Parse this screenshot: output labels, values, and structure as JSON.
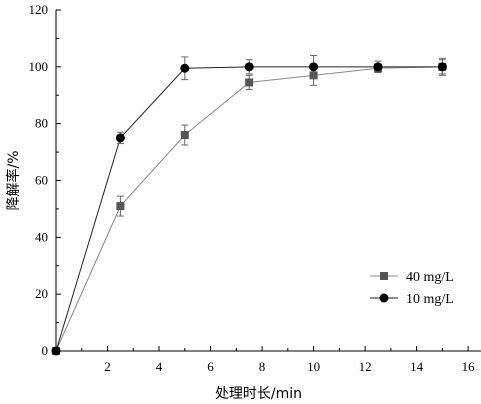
{
  "chart_data": {
    "type": "line",
    "xlabel": "处理时长/min",
    "ylabel": "降解率/%",
    "xlim": [
      0,
      16.5
    ],
    "ylim": [
      0,
      120
    ],
    "xticks": [
      2,
      4,
      6,
      8,
      10,
      12,
      14,
      16
    ],
    "yticks": [
      0,
      20,
      40,
      60,
      80,
      100,
      120
    ],
    "x": [
      0,
      2.5,
      5,
      7.5,
      10,
      12.5,
      15
    ],
    "series": [
      {
        "name": "40 mg/L",
        "marker": "square",
        "color": "#555555",
        "line_color": "#888888",
        "values": [
          0,
          51,
          76,
          94.5,
          97,
          99.5,
          100
        ],
        "errors": [
          0,
          3.5,
          3.5,
          2.5,
          3.5,
          1.5,
          2.5
        ]
      },
      {
        "name": "10 mg/L",
        "marker": "circle",
        "color": "#000000",
        "line_color": "#222222",
        "values": [
          0,
          75,
          99.5,
          100,
          100,
          100,
          100
        ],
        "errors": [
          0,
          2,
          4,
          2.5,
          4,
          2,
          3
        ]
      }
    ],
    "legend_position": "bottom-right",
    "grid": false
  }
}
